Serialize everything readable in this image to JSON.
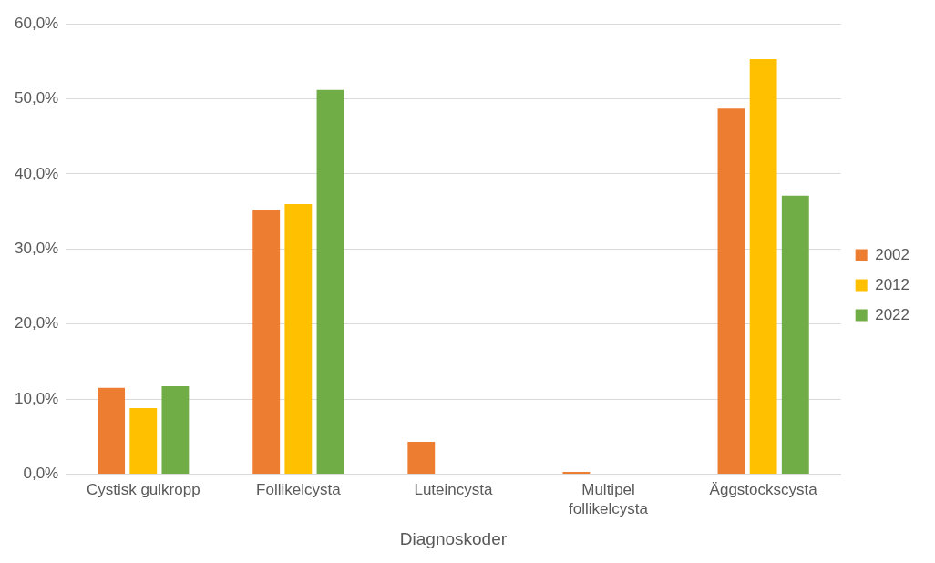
{
  "chart_data": {
    "type": "bar",
    "xlabel": "Diagnoskoder",
    "categories": [
      "Cystisk gulkropp",
      "Follikelcysta",
      "Luteincysta",
      "Multipel follikelcysta",
      "Äggstockscysta"
    ],
    "series": [
      {
        "name": "2002",
        "color": "#ed7d31",
        "values": [
          11.5,
          35.2,
          4.3,
          0.3,
          48.7
        ]
      },
      {
        "name": "2012",
        "color": "#ffc000",
        "values": [
          8.8,
          36.0,
          0,
          0,
          55.3
        ]
      },
      {
        "name": "2022",
        "color": "#70ad47",
        "values": [
          11.7,
          51.2,
          0,
          0,
          37.1
        ]
      }
    ],
    "ylim": [
      0,
      60
    ],
    "yticks": [
      {
        "value": 0,
        "label": "0,0%"
      },
      {
        "value": 10,
        "label": "10,0%"
      },
      {
        "value": 20,
        "label": "20,0%"
      },
      {
        "value": 30,
        "label": "30,0%"
      },
      {
        "value": 40,
        "label": "40,0%"
      },
      {
        "value": 50,
        "label": "50,0%"
      },
      {
        "value": 60,
        "label": "60,0%"
      }
    ],
    "grid": "y",
    "legend": "right"
  }
}
